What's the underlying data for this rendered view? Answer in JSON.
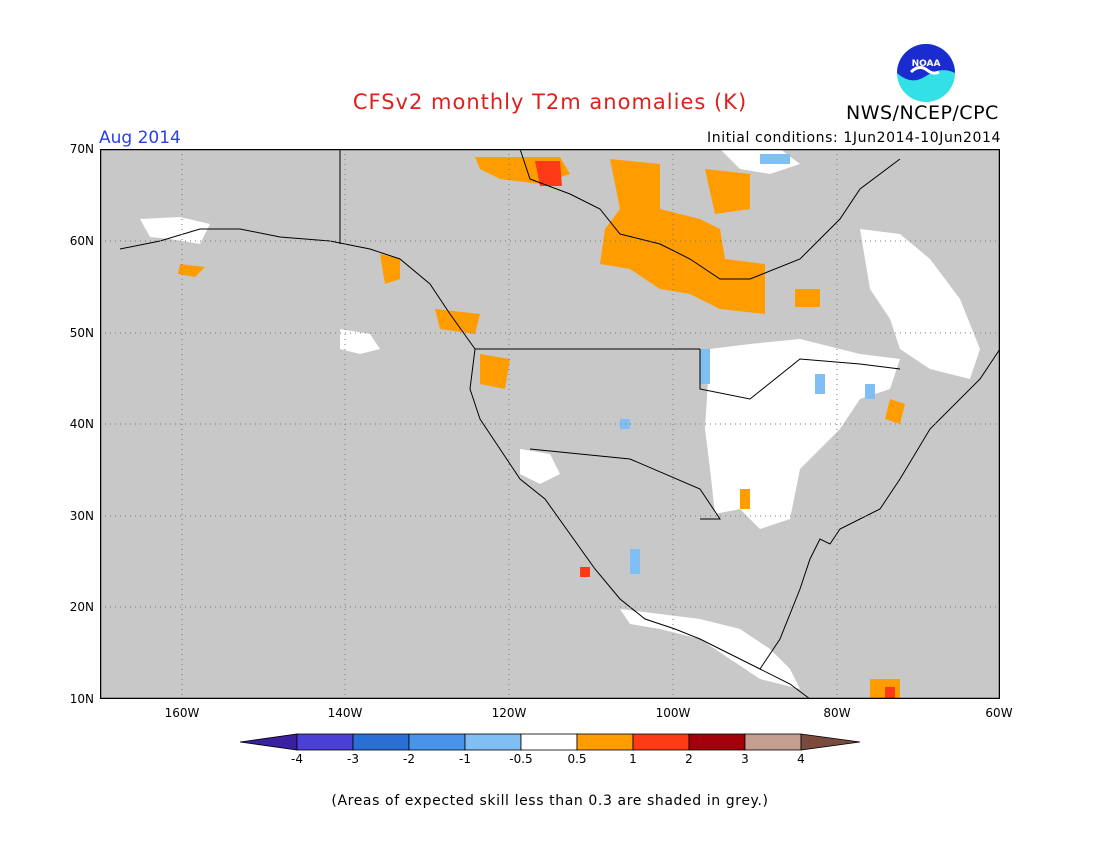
{
  "title": "CFSv2 monthly T2m anomalies (K)",
  "agency": "NWS/NCEP/CPC",
  "logo_text": "NOAA",
  "month": "Aug 2014",
  "initial_conditions": "Initial conditions:  1Jun2014-10Jun2014",
  "lat_labels": [
    "70N",
    "60N",
    "50N",
    "40N",
    "30N",
    "20N",
    "10N"
  ],
  "lon_labels": [
    "160W",
    "140W",
    "120W",
    "100W",
    "80W",
    "60W"
  ],
  "colorbar": {
    "labels": [
      "-4",
      "-3",
      "-2",
      "-1",
      "-0.5",
      "0.5",
      "1",
      "2",
      "3",
      "4"
    ],
    "colors": [
      "#3a1fa0",
      "#4b40d6",
      "#2a6fd6",
      "#4a93ea",
      "#80bff3",
      "#ffffff",
      "#fe9c00",
      "#ff3a16",
      "#a4000c",
      "#c49e8e",
      "#7a4a3e"
    ]
  },
  "note": "(Areas of expected skill less than 0.3 are shaded in grey.)",
  "colors": {
    "grey_mask": "#c8c8c8",
    "land_white": "#ffffff",
    "title_red": "#e0201c",
    "month_blue": "#2a3fe0",
    "logo_cyan": "#32e0e6",
    "logo_blue": "#1a2ccf"
  }
}
